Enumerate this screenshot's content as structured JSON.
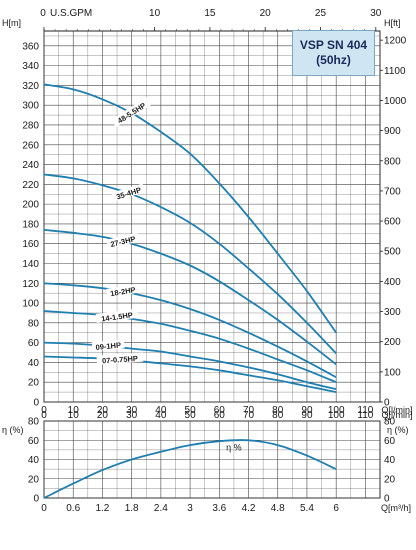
{
  "chart_data": [
    {
      "type": "line",
      "title": "VSP SN 404",
      "subtitle": "(50hz)",
      "top_axis": {
        "label": "U.S.GPM",
        "ticks": [
          "0",
          "10",
          "15",
          "20",
          "25",
          "30"
        ]
      },
      "bottom_axis": {
        "label": "Q[l/min]",
        "ticks": [
          "0",
          "10",
          "20",
          "30",
          "40",
          "50",
          "60",
          "70",
          "80",
          "90",
          "100",
          "110"
        ]
      },
      "y_left": {
        "label": "H[m]",
        "ticks": [
          "0",
          "20",
          "40",
          "60",
          "80",
          "100",
          "120",
          "140",
          "160",
          "180",
          "200",
          "220",
          "240",
          "260",
          "280",
          "300",
          "320",
          "340",
          "360"
        ]
      },
      "y_right": {
        "label": "H[ft]",
        "ticks": [
          "0",
          "100",
          "200",
          "300",
          "400",
          "500",
          "600",
          "700",
          "800",
          "900",
          "1000",
          "1100",
          "1200"
        ]
      },
      "xlim": [
        0,
        115
      ],
      "ylim": [
        0,
        375
      ],
      "x": [
        0,
        10,
        20,
        30,
        40,
        50,
        60,
        70,
        80,
        90,
        100
      ],
      "series": [
        {
          "name": "48-5.5HP",
          "values": [
            321,
            316,
            306,
            292,
            273,
            251,
            221,
            187,
            150,
            112,
            70
          ]
        },
        {
          "name": "35-4HP",
          "values": [
            230,
            226,
            219,
            210,
            197,
            181,
            160,
            135,
            109,
            80,
            49
          ]
        },
        {
          "name": "27-3HP",
          "values": [
            174,
            171,
            167,
            160,
            150,
            138,
            122,
            103,
            83,
            61,
            38
          ]
        },
        {
          "name": "18-2HP",
          "values": [
            120,
            118,
            115,
            110,
            103,
            94,
            83,
            70,
            56,
            41,
            25
          ]
        },
        {
          "name": "14-1.5HP",
          "values": [
            92,
            90,
            88,
            84,
            79,
            72,
            64,
            54,
            43,
            32,
            20
          ]
        },
        {
          "name": "09-1HP",
          "values": [
            60,
            59,
            57,
            54,
            51,
            46,
            41,
            35,
            28,
            20,
            13
          ]
        },
        {
          "name": "07-0.75HP",
          "values": [
            46,
            45,
            44,
            42,
            39,
            36,
            32,
            27,
            22,
            16,
            10
          ]
        }
      ]
    },
    {
      "type": "line",
      "bottom_axis": {
        "label": "Q[m³/h]",
        "ticks": [
          "0",
          "0.6",
          "1.2",
          "1.8",
          "2.4",
          "3",
          "3.6",
          "4.2",
          "4.8",
          "5.4",
          "6"
        ]
      },
      "y_left": {
        "label": "η (%)",
        "ticks": [
          "0",
          "20",
          "40",
          "60",
          "80"
        ]
      },
      "y_right": {
        "label": "η (%)",
        "ticks": [
          "0",
          "20",
          "40",
          "60",
          "80"
        ]
      },
      "xlim": [
        0,
        6.9
      ],
      "ylim": [
        0,
        80
      ],
      "x": [
        0,
        0.6,
        1.2,
        1.8,
        2.4,
        3,
        3.6,
        4.2,
        4.8,
        5.4,
        6
      ],
      "series": [
        {
          "name": "η %",
          "values": [
            0,
            15,
            29,
            40,
            48,
            55,
            59,
            60,
            55,
            44,
            30
          ]
        }
      ]
    }
  ],
  "colors": {
    "curve": "#1e7fb0",
    "grid": "#444444",
    "badge_bg": "#cfe5f2"
  }
}
